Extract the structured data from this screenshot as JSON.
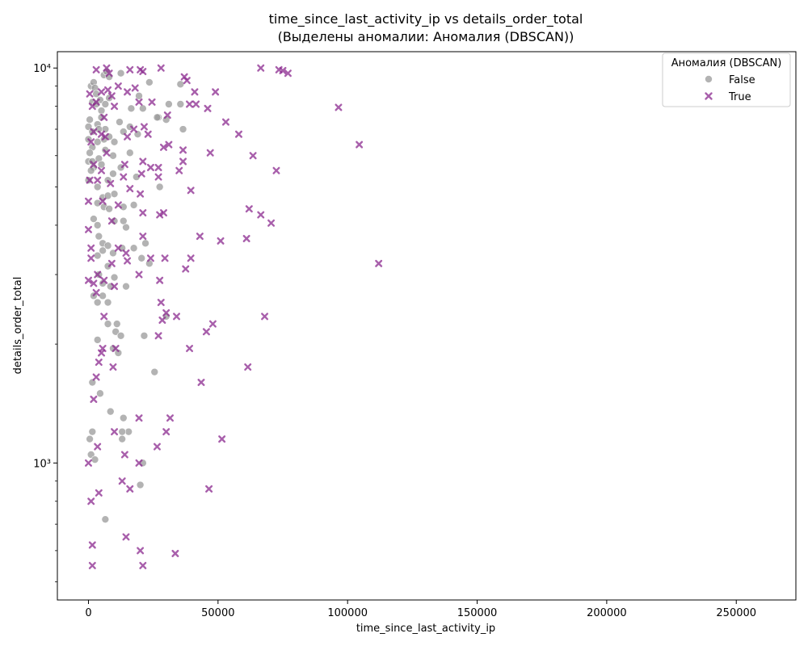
{
  "chart_data": {
    "type": "scatter",
    "title": "time_since_last_activity_ip vs details_order_total",
    "subtitle": "(Выделены аномалии: Аномалия (DBSCAN))",
    "xlabel": "time_since_last_activity_ip",
    "ylabel": "details_order_total",
    "xlim": [
      -12000,
      273000
    ],
    "ylim": [
      450,
      11000
    ],
    "y_scale": "log",
    "x_ticks": [
      0,
      50000,
      100000,
      150000,
      200000,
      250000
    ],
    "x_tick_labels": [
      "0",
      "50000",
      "100000",
      "150000",
      "200000",
      "250000"
    ],
    "y_ticks": [
      1000,
      10000
    ],
    "y_tick_labels": [
      "10³",
      "10⁴"
    ],
    "grid": false,
    "legend": {
      "title": "Аномалия (DBSCAN)",
      "placement": "top-right",
      "entries": [
        "False",
        "True"
      ]
    },
    "series": [
      {
        "name": "False",
        "marker": "circle",
        "color": "#999999",
        "points": [
          [
            1000,
            9000
          ],
          [
            2000,
            9200
          ],
          [
            2500,
            8900
          ],
          [
            3000,
            8600
          ],
          [
            4500,
            8300
          ],
          [
            6000,
            9600
          ],
          [
            7000,
            9800
          ],
          [
            8000,
            9500
          ],
          [
            1500,
            8200
          ],
          [
            3000,
            8100
          ],
          [
            5000,
            7800
          ],
          [
            6500,
            8100
          ],
          [
            8000,
            8400
          ],
          [
            12500,
            9700
          ],
          [
            23500,
            9200
          ],
          [
            19500,
            8500
          ],
          [
            500,
            7400
          ],
          [
            0,
            7100
          ],
          [
            1500,
            6900
          ],
          [
            3500,
            7200
          ],
          [
            5000,
            7500
          ],
          [
            6500,
            7000
          ],
          [
            8000,
            6700
          ],
          [
            12000,
            7300
          ],
          [
            16000,
            7100
          ],
          [
            27000,
            7500
          ],
          [
            36500,
            7000
          ],
          [
            10000,
            6500
          ],
          [
            13500,
            6900
          ],
          [
            19000,
            6800
          ],
          [
            0,
            6600
          ],
          [
            1500,
            6300
          ],
          [
            3500,
            6500
          ],
          [
            6000,
            6600
          ],
          [
            500,
            6100
          ],
          [
            0,
            5800
          ],
          [
            2000,
            5600
          ],
          [
            4000,
            5900
          ],
          [
            6500,
            6200
          ],
          [
            9500,
            6000
          ],
          [
            12500,
            5600
          ],
          [
            16000,
            6100
          ],
          [
            0,
            5200
          ],
          [
            3500,
            5000
          ],
          [
            7500,
            5200
          ],
          [
            9500,
            5400
          ],
          [
            18500,
            5300
          ],
          [
            27500,
            5000
          ],
          [
            5500,
            4700
          ],
          [
            7500,
            4750
          ],
          [
            10000,
            4800
          ],
          [
            3500,
            4550
          ],
          [
            6000,
            4450
          ],
          [
            8000,
            4400
          ],
          [
            13500,
            4450
          ],
          [
            17500,
            4500
          ],
          [
            3500,
            4000
          ],
          [
            2000,
            4150
          ],
          [
            14500,
            3950
          ],
          [
            10000,
            4100
          ],
          [
            13500,
            4100
          ],
          [
            4000,
            3750
          ],
          [
            5500,
            3600
          ],
          [
            7500,
            3550
          ],
          [
            9500,
            3400
          ],
          [
            13000,
            3500
          ],
          [
            17500,
            3500
          ],
          [
            3500,
            3350
          ],
          [
            5500,
            3450
          ],
          [
            22000,
            3600
          ],
          [
            20500,
            3300
          ],
          [
            23500,
            3200
          ],
          [
            7500,
            3150
          ],
          [
            4000,
            3000
          ],
          [
            10000,
            2950
          ],
          [
            5500,
            2850
          ],
          [
            8500,
            2800
          ],
          [
            14500,
            2800
          ],
          [
            2000,
            2650
          ],
          [
            3500,
            2550
          ],
          [
            5500,
            2650
          ],
          [
            7500,
            2550
          ],
          [
            30000,
            2350
          ],
          [
            7500,
            2250
          ],
          [
            11000,
            2250
          ],
          [
            10500,
            2150
          ],
          [
            12500,
            2100
          ],
          [
            21500,
            2100
          ],
          [
            3500,
            2050
          ],
          [
            9500,
            1950
          ],
          [
            11500,
            1900
          ],
          [
            25500,
            1700
          ],
          [
            1500,
            1600
          ],
          [
            4500,
            1500
          ],
          [
            8500,
            1350
          ],
          [
            13500,
            1300
          ],
          [
            15500,
            1200
          ],
          [
            500,
            1150
          ],
          [
            1500,
            1200
          ],
          [
            13000,
            1150
          ],
          [
            13000,
            1200
          ],
          [
            1000,
            1050
          ],
          [
            2500,
            1020
          ],
          [
            21000,
            1000
          ],
          [
            20000,
            880
          ],
          [
            6500,
            720
          ],
          [
            35500,
            9100
          ],
          [
            35500,
            8100
          ],
          [
            31000,
            8100
          ],
          [
            21000,
            7900
          ],
          [
            26500,
            7500
          ],
          [
            30000,
            7400
          ],
          [
            16500,
            7900
          ],
          [
            4000,
            7000
          ],
          [
            1500,
            5800
          ],
          [
            5000,
            5700
          ],
          [
            1000,
            5500
          ]
        ]
      },
      {
        "name": "True",
        "marker": "x",
        "color": "#8B2A8F",
        "points": [
          [
            3000,
            9900
          ],
          [
            7000,
            10000
          ],
          [
            8000,
            9700
          ],
          [
            16000,
            9900
          ],
          [
            20000,
            9900
          ],
          [
            21000,
            9800
          ],
          [
            28000,
            10000
          ],
          [
            37000,
            9500
          ],
          [
            38000,
            9300
          ],
          [
            66500,
            10000
          ],
          [
            73500,
            9900
          ],
          [
            75000,
            9850
          ],
          [
            77000,
            9700
          ],
          [
            500,
            8600
          ],
          [
            5000,
            8700
          ],
          [
            7500,
            8800
          ],
          [
            9000,
            8500
          ],
          [
            11500,
            9000
          ],
          [
            15000,
            8700
          ],
          [
            18000,
            8900
          ],
          [
            24500,
            8200
          ],
          [
            41000,
            8700
          ],
          [
            49000,
            8700
          ],
          [
            1500,
            8000
          ],
          [
            3000,
            8200
          ],
          [
            10000,
            8000
          ],
          [
            19500,
            8200
          ],
          [
            39000,
            8100
          ],
          [
            41500,
            8100
          ],
          [
            46000,
            7900
          ],
          [
            96500,
            7950
          ],
          [
            6000,
            7500
          ],
          [
            30500,
            7600
          ],
          [
            2000,
            6900
          ],
          [
            5000,
            6800
          ],
          [
            17500,
            7000
          ],
          [
            21500,
            7100
          ],
          [
            53000,
            7300
          ],
          [
            1000,
            6500
          ],
          [
            6500,
            6700
          ],
          [
            15000,
            6700
          ],
          [
            23000,
            6800
          ],
          [
            58000,
            6800
          ],
          [
            104500,
            6400
          ],
          [
            29000,
            6300
          ],
          [
            31000,
            6400
          ],
          [
            36500,
            6200
          ],
          [
            7000,
            6100
          ],
          [
            47000,
            6100
          ],
          [
            63500,
            6000
          ],
          [
            2000,
            5700
          ],
          [
            5000,
            5500
          ],
          [
            14000,
            5700
          ],
          [
            21000,
            5800
          ],
          [
            24000,
            5600
          ],
          [
            27000,
            5600
          ],
          [
            35000,
            5500
          ],
          [
            36500,
            5800
          ],
          [
            72500,
            5500
          ],
          [
            500,
            5200
          ],
          [
            3500,
            5200
          ],
          [
            8500,
            5100
          ],
          [
            13500,
            5300
          ],
          [
            20500,
            5400
          ],
          [
            27000,
            5300
          ],
          [
            16000,
            4950
          ],
          [
            20000,
            4800
          ],
          [
            39500,
            4900
          ],
          [
            0,
            4600
          ],
          [
            5500,
            4600
          ],
          [
            11500,
            4500
          ],
          [
            21000,
            4300
          ],
          [
            29000,
            4300
          ],
          [
            62000,
            4400
          ],
          [
            66500,
            4250
          ],
          [
            70500,
            4050
          ],
          [
            0,
            3900
          ],
          [
            9000,
            4100
          ],
          [
            27500,
            4250
          ],
          [
            43000,
            3750
          ],
          [
            51000,
            3650
          ],
          [
            61000,
            3700
          ],
          [
            1000,
            3500
          ],
          [
            11500,
            3500
          ],
          [
            14500,
            3400
          ],
          [
            21000,
            3750
          ],
          [
            1000,
            3300
          ],
          [
            9000,
            3200
          ],
          [
            15000,
            3250
          ],
          [
            24000,
            3300
          ],
          [
            29500,
            3300
          ],
          [
            39500,
            3300
          ],
          [
            112000,
            3200
          ],
          [
            3500,
            3000
          ],
          [
            6000,
            2900
          ],
          [
            10000,
            2800
          ],
          [
            19500,
            3000
          ],
          [
            27500,
            2900
          ],
          [
            37500,
            3100
          ],
          [
            0,
            2900
          ],
          [
            2000,
            2850
          ],
          [
            3000,
            2700
          ],
          [
            28000,
            2550
          ],
          [
            30000,
            2400
          ],
          [
            34000,
            2350
          ],
          [
            68000,
            2350
          ],
          [
            6000,
            2350
          ],
          [
            28500,
            2300
          ],
          [
            48000,
            2250
          ],
          [
            45500,
            2150
          ],
          [
            27000,
            2100
          ],
          [
            5500,
            1950
          ],
          [
            5000,
            1900
          ],
          [
            10500,
            1950
          ],
          [
            39000,
            1950
          ],
          [
            4000,
            1800
          ],
          [
            9500,
            1750
          ],
          [
            61500,
            1750
          ],
          [
            3000,
            1650
          ],
          [
            43500,
            1600
          ],
          [
            2000,
            1450
          ],
          [
            19500,
            1300
          ],
          [
            31500,
            1300
          ],
          [
            10000,
            1200
          ],
          [
            30000,
            1200
          ],
          [
            51500,
            1150
          ],
          [
            3500,
            1100
          ],
          [
            26500,
            1100
          ],
          [
            14000,
            1050
          ],
          [
            0,
            1000
          ],
          [
            19500,
            1000
          ],
          [
            13000,
            900
          ],
          [
            16000,
            860
          ],
          [
            46500,
            860
          ],
          [
            4000,
            840
          ],
          [
            1000,
            800
          ],
          [
            14500,
            650
          ],
          [
            1500,
            620
          ],
          [
            20000,
            600
          ],
          [
            33500,
            590
          ],
          [
            1500,
            550
          ],
          [
            21000,
            550
          ]
        ]
      }
    ]
  }
}
